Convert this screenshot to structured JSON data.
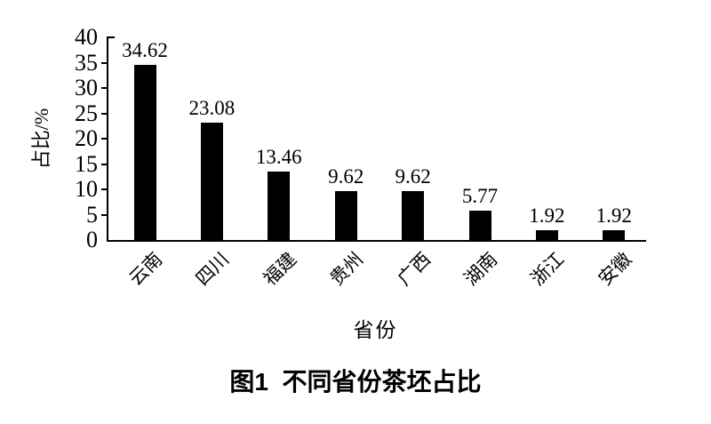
{
  "figure": {
    "caption": "图1  不同省份茶坯占比"
  },
  "chart_data": {
    "type": "bar",
    "title": "图1 不同省份茶坯占比",
    "categories": [
      "云南",
      "四川",
      "福建",
      "贵州",
      "广西",
      "湖南",
      "浙江",
      "安徽"
    ],
    "values": [
      34.62,
      23.08,
      13.46,
      9.62,
      9.62,
      5.77,
      1.92,
      1.92
    ],
    "value_labels": [
      "34.62",
      "23.08",
      "13.46",
      "9.62",
      "9.62",
      "5.77",
      "1.92",
      "1.92"
    ],
    "xlabel": "省份",
    "ylabel": "占比/%",
    "ylim": [
      0,
      40
    ],
    "yticks": [
      0,
      5,
      10,
      15,
      20,
      25,
      30,
      35,
      40
    ],
    "xtick_rotation_deg": 45,
    "bar_color": "#000000",
    "axis_color": "#000000",
    "background_color": "#ffffff",
    "grid": false,
    "legend_position": "none"
  }
}
